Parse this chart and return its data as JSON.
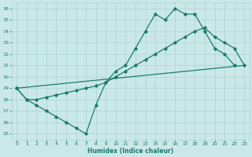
{
  "xlabel": "Humidex (Indice chaleur)",
  "xlim": [
    -0.5,
    23.5
  ],
  "ylim": [
    24.5,
    36.5
  ],
  "yticks": [
    25,
    26,
    27,
    28,
    29,
    30,
    31,
    32,
    33,
    34,
    35,
    36
  ],
  "xticks": [
    0,
    1,
    2,
    3,
    4,
    5,
    6,
    7,
    8,
    9,
    10,
    11,
    12,
    13,
    14,
    15,
    16,
    17,
    18,
    19,
    20,
    21,
    22,
    23
  ],
  "bg_color": "#cbe8e8",
  "line_color": "#1a7a6e",
  "grid_color": "#a8d4d0",
  "line1_x": [
    0,
    1,
    2,
    3,
    4,
    5,
    6,
    7,
    8,
    9,
    10,
    11,
    12,
    13,
    14,
    15,
    16,
    17,
    18,
    19,
    20,
    21,
    22
  ],
  "line1_y": [
    29,
    28,
    27.5,
    27,
    26.5,
    26,
    25.5,
    25,
    27.5,
    29.5,
    30.5,
    31,
    32.5,
    34,
    35.5,
    35,
    36,
    35.5,
    35.5,
    34,
    32.5,
    32,
    31
  ],
  "line2_x": [
    0,
    1,
    2,
    3,
    4,
    5,
    6,
    7,
    8,
    9,
    10,
    11,
    12,
    13,
    14,
    15,
    16,
    17,
    18,
    19,
    20,
    21,
    22,
    23
  ],
  "line2_y": [
    29,
    28,
    28,
    28.2,
    28.4,
    28.6,
    28.8,
    29,
    29.2,
    29.5,
    30,
    30.5,
    31,
    31.5,
    32,
    32.5,
    33,
    33.5,
    34,
    34.3,
    33.5,
    33,
    32.5,
    31
  ],
  "line3_x": [
    0,
    23
  ],
  "line3_y": [
    29,
    31
  ]
}
